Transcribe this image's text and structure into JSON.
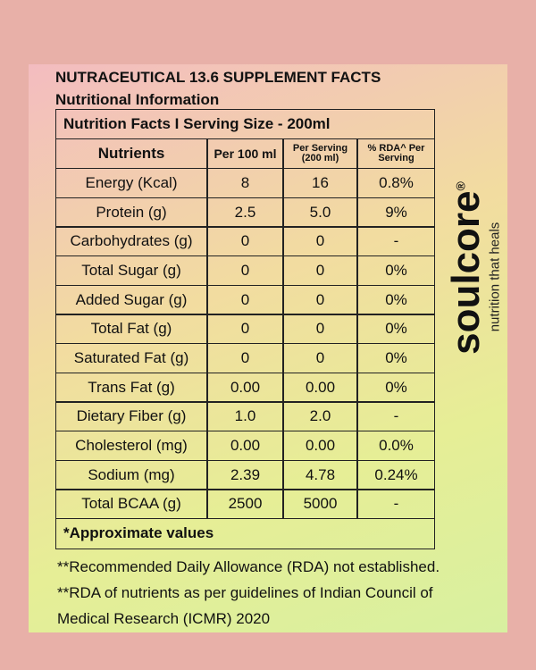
{
  "header": {
    "title": "NUTRACEUTICAL 13.6 SUPPLEMENT FACTS",
    "subtitle": "Nutritional Information"
  },
  "table": {
    "caption": "Nutrition Facts I Serving Size - 200ml",
    "columns": [
      [
        "Nutrients"
      ],
      [
        "Per 100 ml"
      ],
      [
        "Per Serving",
        "(200 ml)"
      ],
      [
        "% RDA^ Per",
        "Serving"
      ]
    ],
    "rows": [
      [
        "Energy (Kcal)",
        "8",
        "16",
        "0.8%"
      ],
      [
        "Protein (g)",
        "2.5",
        "5.0",
        "9%"
      ],
      [
        "Carbohydrates (g)",
        "0",
        "0",
        "-"
      ],
      [
        "Total Sugar (g)",
        "0",
        "0",
        "0%"
      ],
      [
        "Added Sugar (g)",
        "0",
        "0",
        "0%"
      ],
      [
        "Total Fat (g)",
        "0",
        "0",
        "0%"
      ],
      [
        "Saturated Fat (g)",
        "0",
        "0",
        "0%"
      ],
      [
        "Trans Fat (g)",
        "0.00",
        "0.00",
        "0%"
      ],
      [
        "Dietary Fiber (g)",
        "1.0",
        "2.0",
        "-"
      ],
      [
        "Cholesterol (mg)",
        "0.00",
        "0.00",
        "0.0%"
      ],
      [
        "Sodium (mg)",
        "2.39",
        "4.78",
        "0.24%"
      ],
      [
        "Total BCAA (g)",
        "2500",
        "5000",
        "-"
      ]
    ],
    "footer": "*Approximate values"
  },
  "footnotes": [
    "**Recommended Daily Allowance (RDA) not established.",
    "**RDA of nutrients as per guidelines of Indian Council of",
    "Medical Research (ICMR) 2020"
  ],
  "brand": {
    "name": "soulcore",
    "mark": "®",
    "tagline": "nutrition that heals"
  }
}
